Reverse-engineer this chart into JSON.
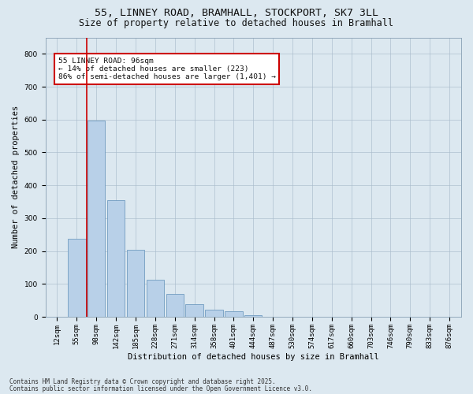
{
  "title_line1": "55, LINNEY ROAD, BRAMHALL, STOCKPORT, SK7 3LL",
  "title_line2": "Size of property relative to detached houses in Bramhall",
  "xlabel": "Distribution of detached houses by size in Bramhall",
  "ylabel": "Number of detached properties",
  "bar_color": "#b8d0e8",
  "bar_edge_color": "#6090b8",
  "background_color": "#dce8f0",
  "fig_background": "#dce8f0",
  "categories": [
    "12sqm",
    "55sqm",
    "98sqm",
    "142sqm",
    "185sqm",
    "228sqm",
    "271sqm",
    "314sqm",
    "358sqm",
    "401sqm",
    "444sqm",
    "487sqm",
    "530sqm",
    "574sqm",
    "617sqm",
    "660sqm",
    "703sqm",
    "746sqm",
    "790sqm",
    "833sqm",
    "876sqm"
  ],
  "values": [
    0,
    237,
    597,
    355,
    205,
    113,
    70,
    38,
    22,
    17,
    5,
    0,
    0,
    0,
    0,
    0,
    0,
    0,
    0,
    0,
    0
  ],
  "ylim": [
    0,
    850
  ],
  "yticks": [
    0,
    100,
    200,
    300,
    400,
    500,
    600,
    700,
    800
  ],
  "vline_x": 1.5,
  "vline_color": "#cc0000",
  "annotation_text": "55 LINNEY ROAD: 96sqm\n← 14% of detached houses are smaller (223)\n86% of semi-detached houses are larger (1,401) →",
  "annotation_box_color": "#ffffff",
  "annotation_box_edge": "#cc0000",
  "footer_line1": "Contains HM Land Registry data © Crown copyright and database right 2025.",
  "footer_line2": "Contains public sector information licensed under the Open Government Licence v3.0.",
  "title_fontsize": 9.5,
  "subtitle_fontsize": 8.5,
  "tick_fontsize": 6.5,
  "label_fontsize": 7.5,
  "annot_fontsize": 6.8,
  "footer_fontsize": 5.5
}
